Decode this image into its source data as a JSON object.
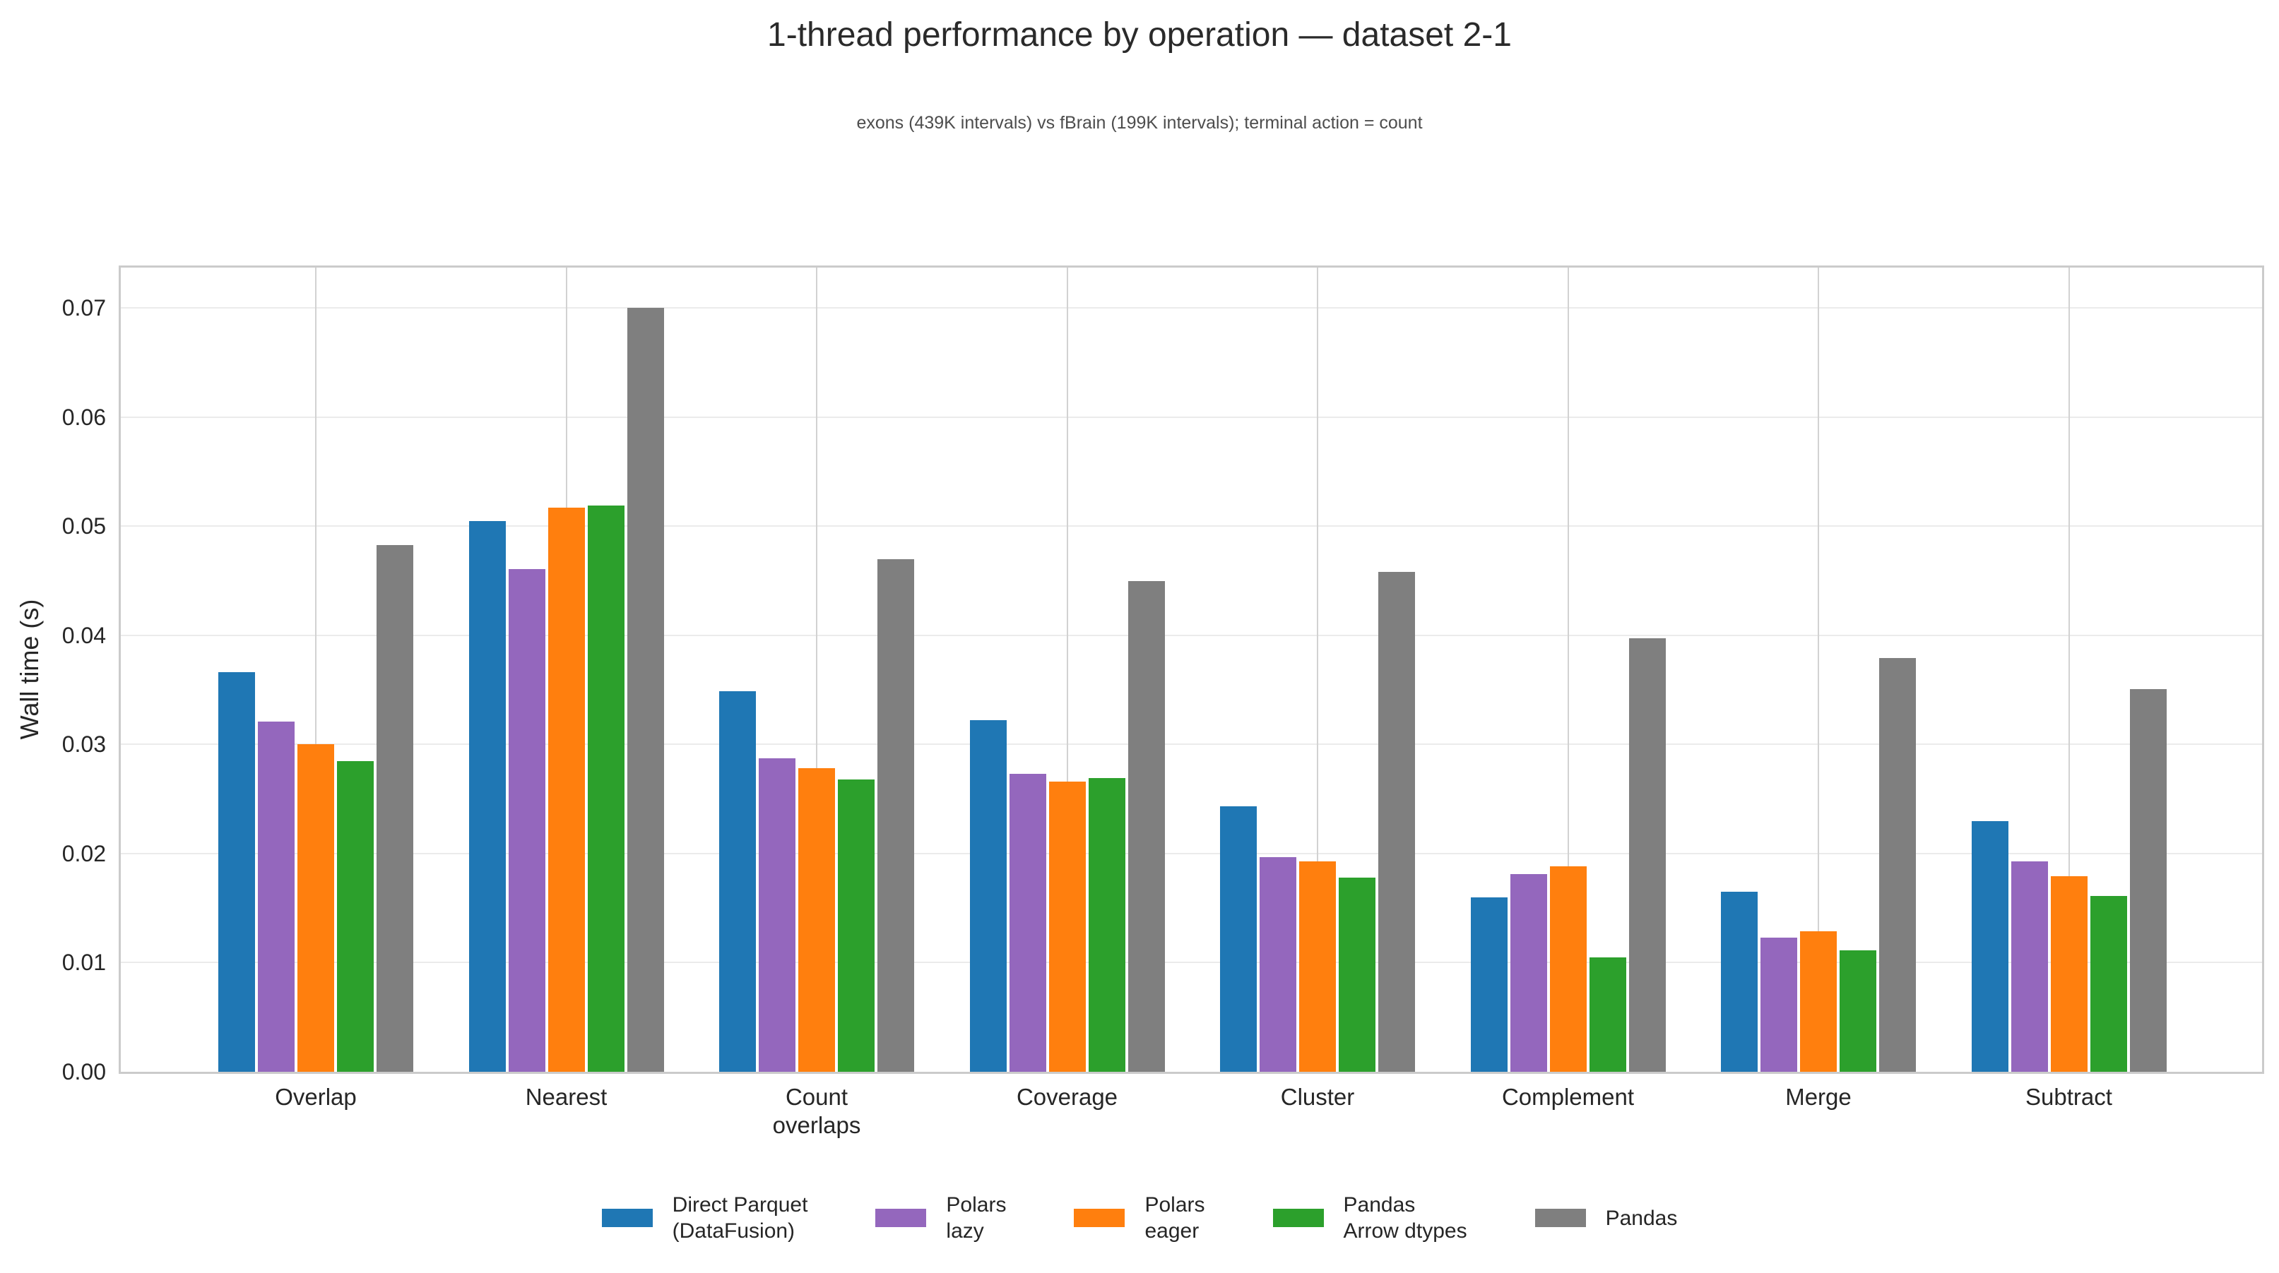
{
  "chart_data": {
    "type": "bar",
    "title": "1-thread performance by operation — dataset 2-1",
    "subtitle": "exons (439K intervals) vs fBrain (199K intervals); terminal action = count",
    "xlabel": "",
    "ylabel": "Wall time (s)",
    "categories": [
      "Overlap",
      "Nearest",
      "Count\noverlaps",
      "Coverage",
      "Cluster",
      "Complement",
      "Merge",
      "Subtract"
    ],
    "series": [
      {
        "name": "Direct Parquet\n(DataFusion)",
        "color": "#1f77b4",
        "values": [
          0.0366,
          0.0505,
          0.0349,
          0.0322,
          0.0243,
          0.016,
          0.0165,
          0.023
        ]
      },
      {
        "name": "Polars\nlazy",
        "color": "#9467bd",
        "values": [
          0.0321,
          0.0461,
          0.0287,
          0.0273,
          0.0197,
          0.0181,
          0.0123,
          0.0193
        ]
      },
      {
        "name": "Polars\neager",
        "color": "#ff7f0e",
        "values": [
          0.03,
          0.0517,
          0.0278,
          0.0266,
          0.0193,
          0.0188,
          0.0129,
          0.0179
        ]
      },
      {
        "name": "Pandas\nArrow dtypes",
        "color": "#2ca02c",
        "values": [
          0.0285,
          0.0519,
          0.0268,
          0.0269,
          0.0178,
          0.0105,
          0.0111,
          0.0161
        ]
      },
      {
        "name": "Pandas",
        "color": "#7f7f7f",
        "values": [
          0.0483,
          0.07,
          0.047,
          0.045,
          0.0458,
          0.0397,
          0.0379,
          0.0351
        ]
      }
    ],
    "ylim": [
      0,
      0.0737
    ],
    "yticks": [
      0.0,
      0.01,
      0.02,
      0.03,
      0.04,
      0.05,
      0.06,
      0.07
    ],
    "ytick_labels": [
      "0.00",
      "0.01",
      "0.02",
      "0.03",
      "0.04",
      "0.05",
      "0.06",
      "0.07"
    ],
    "grid": true,
    "legend_position": "bottom"
  }
}
